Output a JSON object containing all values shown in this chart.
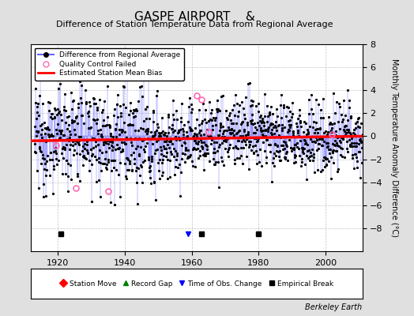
{
  "title": "GASPE AIRPORT    &",
  "subtitle": "Difference of Station Temperature Data from Regional Average",
  "ylabel": "Monthly Temperature Anomaly Difference (°C)",
  "xlabel_ticks": [
    1920,
    1940,
    1960,
    1980,
    2000
  ],
  "ylim": [
    -10,
    8
  ],
  "yticks": [
    -8,
    -6,
    -4,
    -2,
    0,
    2,
    4,
    6,
    8
  ],
  "xlim": [
    1912,
    2011
  ],
  "bias_value": -0.2,
  "background_color": "#e0e0e0",
  "plot_bg_color": "#ffffff",
  "line_color": "#6666ff",
  "dot_color": "#000000",
  "bias_color": "#ff0000",
  "qc_color": "#ff69b4",
  "seed": 12345,
  "n_points": 1176,
  "start_year": 1913.0,
  "end_year": 2011.0,
  "empirical_break_years": [
    1921,
    1963,
    1980
  ],
  "obs_change_years": [
    1959
  ],
  "qc_failed_years": [
    1919.5,
    1925.5,
    1935.0,
    1961.5,
    1963.0,
    1965.0,
    2002.0
  ],
  "qc_failed_vals": [
    -0.8,
    -4.5,
    -4.8,
    3.5,
    3.2,
    0.4,
    0.2
  ]
}
